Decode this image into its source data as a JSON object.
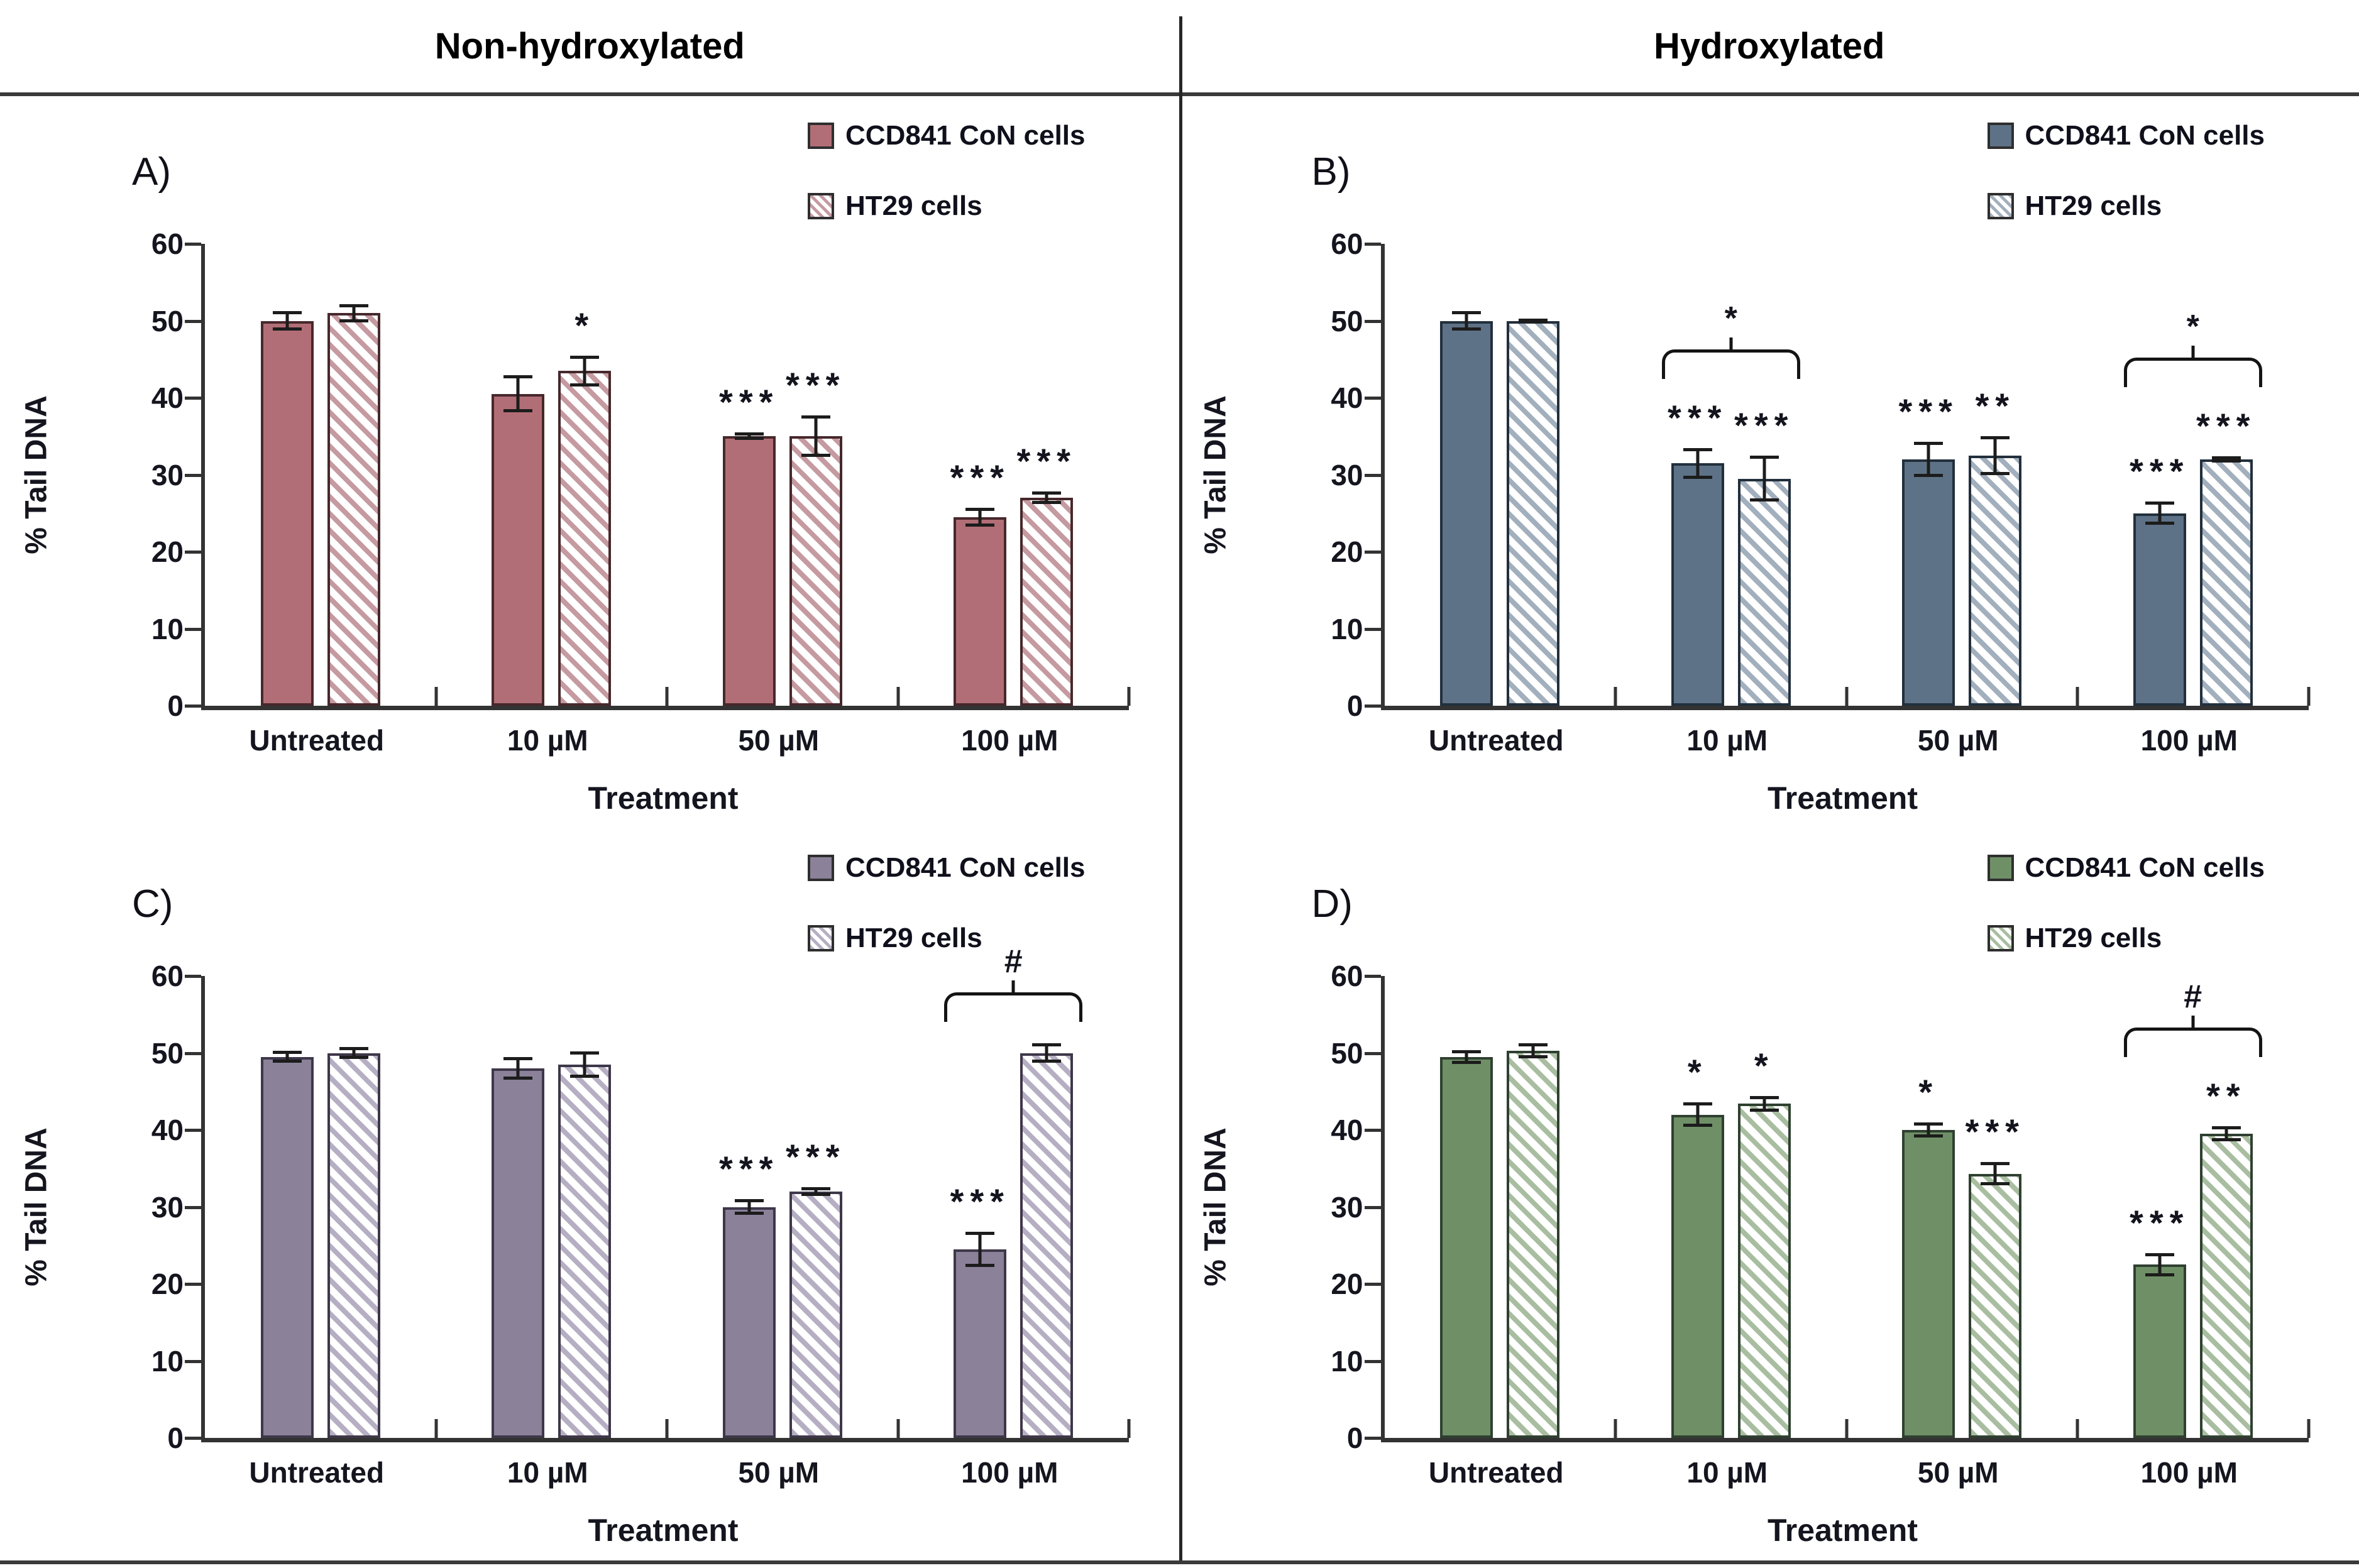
{
  "header": {
    "left_title": "Non-hydroxylated",
    "right_title": "Hydroxylated"
  },
  "axis": {
    "ylabel": "% Tail DNA",
    "xlabel": "Treatment",
    "ymin": 0,
    "ymax": 60,
    "yticks": [
      60,
      50,
      40,
      30,
      20,
      10,
      0
    ],
    "grid": false
  },
  "legend_position": "top-right",
  "categories": [
    "Untreated",
    "10 µM",
    "50 µM",
    "100 µM"
  ],
  "chart_data": [
    {
      "id": "a",
      "panel_label": "A)",
      "type": "bar",
      "column": "Non-hydroxylated",
      "categories": [
        "Untreated",
        "10 µM",
        "50 µM",
        "100 µM"
      ],
      "colors": {
        "solid": "#b26e76",
        "stripe": "#c59aa1",
        "border": "#46282c"
      },
      "series": [
        {
          "name": "CCD841 CoN cells",
          "pattern": "solid",
          "values": [
            50,
            40.5,
            35,
            24.5
          ],
          "errors": [
            1.3,
            2.4,
            0.5,
            1.2
          ],
          "sig": [
            "",
            "",
            "***",
            "***"
          ]
        },
        {
          "name": "HT29 cells",
          "pattern": "hatch",
          "values": [
            51,
            43.5,
            35,
            27
          ],
          "errors": [
            1.2,
            2.0,
            2.7,
            0.8
          ],
          "sig": [
            "",
            "*",
            "***",
            "***"
          ]
        }
      ],
      "brackets": []
    },
    {
      "id": "b",
      "panel_label": "B)",
      "type": "bar",
      "column": "Hydroxylated",
      "categories": [
        "Untreated",
        "10 µM",
        "50 µM",
        "100 µM"
      ],
      "colors": {
        "solid": "#5e7287",
        "stripe": "#a2afbd",
        "border": "#222f3c"
      },
      "series": [
        {
          "name": "CCD841 CoN cells",
          "pattern": "solid",
          "values": [
            50,
            31.5,
            32,
            25
          ],
          "errors": [
            1.3,
            2.0,
            2.3,
            1.5
          ],
          "sig": [
            "",
            "***",
            "***",
            "***"
          ]
        },
        {
          "name": "HT29 cells",
          "pattern": "hatch",
          "values": [
            50,
            29.5,
            32.5,
            32
          ],
          "errors": [
            0.3,
            3.0,
            2.5,
            0.4
          ],
          "sig": [
            "",
            "***",
            "**",
            "***"
          ]
        }
      ],
      "brackets": [
        {
          "category_index": 1,
          "label": "*"
        },
        {
          "category_index": 3,
          "label": "*"
        }
      ]
    },
    {
      "id": "c",
      "panel_label": "C)",
      "type": "bar",
      "column": "Non-hydroxylated",
      "categories": [
        "Untreated",
        "10 µM",
        "50 µM",
        "100 µM"
      ],
      "colors": {
        "solid": "#8b8199",
        "stripe": "#b6afc3",
        "border": "#3e3749"
      },
      "series": [
        {
          "name": "CCD841 CoN cells",
          "pattern": "solid",
          "values": [
            49.5,
            48,
            30,
            24.5
          ],
          "errors": [
            0.8,
            1.5,
            1.0,
            2.3
          ],
          "sig": [
            "",
            "",
            "***",
            "***"
          ]
        },
        {
          "name": "HT29 cells",
          "pattern": "hatch",
          "values": [
            50,
            48.5,
            32,
            50
          ],
          "errors": [
            0.8,
            1.7,
            0.6,
            1.3
          ],
          "sig": [
            "",
            "",
            "***",
            ""
          ]
        }
      ],
      "brackets": [
        {
          "category_index": 3,
          "label": "#"
        }
      ]
    },
    {
      "id": "d",
      "panel_label": "D)",
      "type": "bar",
      "column": "Hydroxylated",
      "categories": [
        "Untreated",
        "10 µM",
        "50 µM",
        "100 µM"
      ],
      "colors": {
        "solid": "#6f9066",
        "stripe": "#a9bea1",
        "border": "#2f4030"
      },
      "series": [
        {
          "name": "CCD841 CoN cells",
          "pattern": "solid",
          "values": [
            49.5,
            42,
            40,
            22.5
          ],
          "errors": [
            0.9,
            1.6,
            1.0,
            1.5
          ],
          "sig": [
            "",
            "*",
            "*",
            "***"
          ]
        },
        {
          "name": "HT29 cells",
          "pattern": "hatch",
          "values": [
            50.3,
            43.4,
            34.3,
            39.5
          ],
          "errors": [
            1.0,
            1.0,
            1.5,
            1.0
          ],
          "sig": [
            "",
            "*",
            "***",
            "**"
          ]
        }
      ],
      "brackets": [
        {
          "category_index": 3,
          "label": "#"
        }
      ]
    }
  ]
}
